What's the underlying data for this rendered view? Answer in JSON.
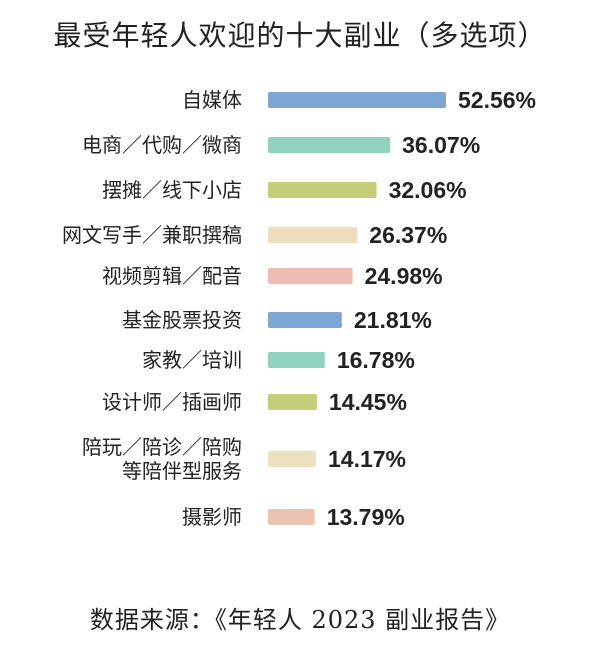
{
  "title": "最受年轻人欢迎的十大副业（多选项）",
  "source": "数据来源：《年轻人 2023 副业报告》",
  "chart_data": {
    "type": "bar",
    "orientation": "horizontal",
    "title": "最受年轻人欢迎的十大副业（多选项）",
    "categories": [
      [
        "自媒体"
      ],
      [
        "电商／代购／微商"
      ],
      [
        "摆摊／线下小店"
      ],
      [
        "网文写手／兼职撰稿"
      ],
      [
        "视频剪辑／配音"
      ],
      [
        "基金股票投资"
      ],
      [
        "家教／培训"
      ],
      [
        "设计师／插画师"
      ],
      [
        "陪玩／陪诊／陪购",
        "等陪伴型服务"
      ],
      [
        "摄影师"
      ]
    ],
    "values": [
      52.56,
      36.07,
      32.06,
      26.37,
      24.98,
      21.81,
      16.78,
      14.45,
      14.17,
      13.79
    ],
    "value_labels": [
      "52.56%",
      "36.07%",
      "32.06%",
      "26.37%",
      "24.98%",
      "21.81%",
      "16.78%",
      "14.45%",
      "14.17%",
      "13.79%"
    ],
    "unit": "%",
    "colors": [
      "#7ea6d4",
      "#90d2bf",
      "#c6cc78",
      "#efdcbe",
      "#efbcb4",
      "#7ea6d4",
      "#90d2bf",
      "#c6cc78",
      "#ece0c0",
      "#ecc2b0"
    ],
    "xlim": [
      0,
      52.56
    ],
    "grid": false,
    "legend": "none"
  }
}
